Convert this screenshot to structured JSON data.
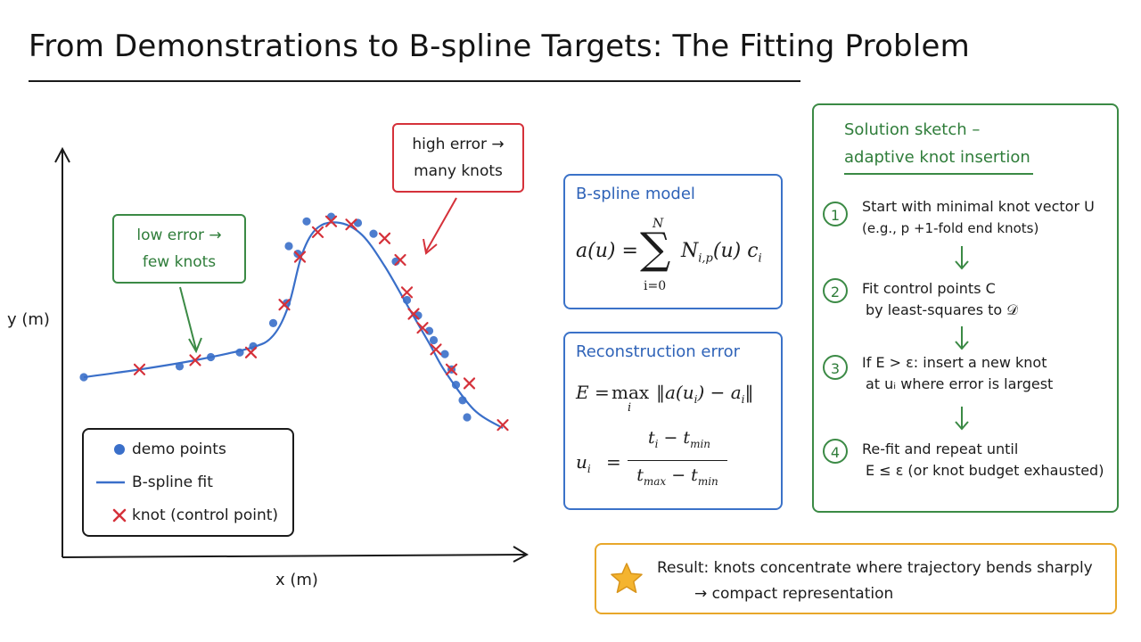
{
  "title": "From Demonstrations to B-spline Targets: The Fitting Problem",
  "chart_data": {
    "type": "scatter",
    "xlabel": "x (m)",
    "ylabel": "y (m)",
    "grid": false,
    "legend_position": "bottom-left",
    "series": [
      {
        "name": "demo points",
        "kind": "points",
        "color": "#3a6fc9",
        "x": [
          0.0,
          0.43,
          0.57,
          0.7,
          0.76,
          0.85,
          0.91,
          0.92,
          0.96,
          1.0,
          1.11,
          1.23,
          1.3,
          1.4,
          1.45,
          1.5,
          1.55,
          1.57,
          1.62,
          1.65,
          1.67,
          1.7,
          1.72
        ],
        "y": [
          0.0,
          0.07,
          0.13,
          0.16,
          0.2,
          0.35,
          0.48,
          0.85,
          0.8,
          1.01,
          1.04,
          1.0,
          0.93,
          0.75,
          0.5,
          0.4,
          0.3,
          0.24,
          0.15,
          0.05,
          -0.05,
          -0.15,
          -0.26
        ]
      },
      {
        "name": "B-spline fit",
        "kind": "line",
        "color": "#3a6fc9",
        "x": [
          0.0,
          0.25,
          0.5,
          0.75,
          0.85,
          0.92,
          0.98,
          1.05,
          1.15,
          1.25,
          1.35,
          1.45,
          1.55,
          1.62,
          1.75,
          1.88
        ],
        "y": [
          0.0,
          0.05,
          0.11,
          0.19,
          0.27,
          0.47,
          0.8,
          0.97,
          1.0,
          0.92,
          0.72,
          0.47,
          0.22,
          0.04,
          -0.21,
          -0.33
        ]
      },
      {
        "name": "knot (control point)",
        "kind": "x-marker",
        "color": "#d5313a",
        "x": [
          0.25,
          0.5,
          0.75,
          0.9,
          0.97,
          1.05,
          1.11,
          1.2,
          1.35,
          1.42,
          1.45,
          1.48,
          1.52,
          1.58,
          1.65,
          1.73,
          1.88
        ],
        "y": [
          0.05,
          0.11,
          0.16,
          0.47,
          0.78,
          0.94,
          1.01,
          0.99,
          0.9,
          0.76,
          0.55,
          0.41,
          0.32,
          0.18,
          0.05,
          -0.04,
          -0.31
        ]
      }
    ],
    "annotations": [
      {
        "text": "high error → many knots",
        "color": "#d5313a",
        "target_x": 1.48,
        "target_y": 0.85
      },
      {
        "text": "low error → few knots",
        "color": "#3b8a45",
        "target_x": 0.43,
        "target_y": 0.13
      }
    ]
  },
  "annotations": {
    "high_error": {
      "line1": "high error →",
      "line2": "many knots"
    },
    "low_error": {
      "line1": "low error →",
      "line2": "few knots"
    }
  },
  "legend": {
    "items": [
      {
        "label": "demo points"
      },
      {
        "label": "B-spline fit"
      },
      {
        "label": "knot (control point)"
      }
    ]
  },
  "bspline_model": {
    "title": "B-spline model",
    "lhs": "a(u) =",
    "sum_upper": "N",
    "sum_lower": "i=0",
    "term": "N",
    "term_sub": "i,p",
    "term_rest": "(u) c",
    "term_rest_sub": "i"
  },
  "reconstruction": {
    "title": "Reconstruction error",
    "eq1_lhs": "E =",
    "eq1_op": "max",
    "eq1_op_sub": "i",
    "eq1_rhs": "‖a(u",
    "eq1_rhs_sub": "i",
    "eq1_rhs2": ") − a",
    "eq1_rhs2_sub": "i",
    "eq1_rhs3": "‖",
    "eq2_lhs": "u",
    "eq2_lhs_sub": "i",
    "eq2_eq": "=",
    "eq2_num": "t",
    "eq2_num_sub": "i",
    "eq2_num_mid": " − t",
    "eq2_num_sub2": "min",
    "eq2_den": "t",
    "eq2_den_sub": "max",
    "eq2_den_mid": " − t",
    "eq2_den_sub2": "min"
  },
  "solution_sketch": {
    "title_line1": "Solution sketch –",
    "title_line2": "adaptive knot insertion",
    "steps": [
      {
        "num": "1",
        "line1": "Start with minimal knot vector U",
        "line2": "(e.g., p +1-fold end knots)"
      },
      {
        "num": "2",
        "line1": "Fit control points C",
        "line2": "by least-squares to 𝒟"
      },
      {
        "num": "3",
        "line1": "If E > ε: insert a new knot",
        "line2": "at uᵢ where error is largest"
      },
      {
        "num": "4",
        "line1": "Re-fit and repeat until",
        "line2": "E ≤ ε (or knot budget exhausted)"
      }
    ]
  },
  "result": {
    "line1": "Result: knots concentrate where trajectory bends sharply",
    "line2": "→ compact representation"
  },
  "colors": {
    "blue": "#3a6fc9",
    "red": "#d5313a",
    "green": "#3b8a45",
    "orange": "#e8a72a",
    "star": "#f4b42f"
  }
}
